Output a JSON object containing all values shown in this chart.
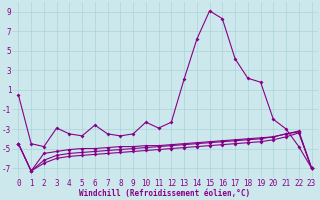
{
  "xlabel": "Windchill (Refroidissement éolien,°C)",
  "background_color": "#cce8ec",
  "grid_color": "#aad4d8",
  "line_color": "#880088",
  "x": [
    0,
    1,
    2,
    3,
    4,
    5,
    6,
    7,
    8,
    9,
    10,
    11,
    12,
    13,
    14,
    15,
    16,
    17,
    18,
    19,
    20,
    21,
    22,
    23
  ],
  "series1": [
    0.5,
    -4.5,
    -4.8,
    -2.9,
    -3.5,
    -3.7,
    -2.6,
    -3.5,
    -3.7,
    -3.5,
    -2.3,
    -2.9,
    -2.3,
    2.1,
    6.2,
    9.1,
    8.3,
    4.2,
    2.2,
    1.8,
    -2.0,
    -3.0,
    -4.8,
    -7.0
  ],
  "series2": [
    -4.5,
    -7.3,
    -5.5,
    -5.3,
    -5.1,
    -5.0,
    -5.0,
    -4.9,
    -4.8,
    -4.8,
    -4.7,
    -4.7,
    -4.6,
    -4.5,
    -4.4,
    -4.3,
    -4.2,
    -4.1,
    -4.0,
    -3.9,
    -3.8,
    -3.5,
    -3.3,
    -7.0
  ],
  "series3": [
    -4.5,
    -7.3,
    -6.2,
    -5.7,
    -5.5,
    -5.4,
    -5.3,
    -5.2,
    -5.1,
    -5.0,
    -4.9,
    -4.8,
    -4.7,
    -4.6,
    -4.5,
    -4.4,
    -4.3,
    -4.2,
    -4.1,
    -4.0,
    -3.8,
    -3.5,
    -3.2,
    -7.0
  ],
  "series4": [
    -4.5,
    -7.3,
    -6.5,
    -6.0,
    -5.8,
    -5.7,
    -5.6,
    -5.5,
    -5.4,
    -5.3,
    -5.2,
    -5.1,
    -5.0,
    -4.9,
    -4.8,
    -4.7,
    -4.6,
    -4.5,
    -4.4,
    -4.3,
    -4.1,
    -3.8,
    -3.4,
    -7.0
  ],
  "ylim": [
    -8,
    10
  ],
  "xlim": [
    -0.5,
    23.5
  ],
  "yticks": [
    -7,
    -5,
    -3,
    -1,
    1,
    3,
    5,
    7,
    9
  ],
  "xticks": [
    0,
    1,
    2,
    3,
    4,
    5,
    6,
    7,
    8,
    9,
    10,
    11,
    12,
    13,
    14,
    15,
    16,
    17,
    18,
    19,
    20,
    21,
    22,
    23
  ],
  "tick_fontsize": 5.5,
  "xlabel_fontsize": 5.5
}
